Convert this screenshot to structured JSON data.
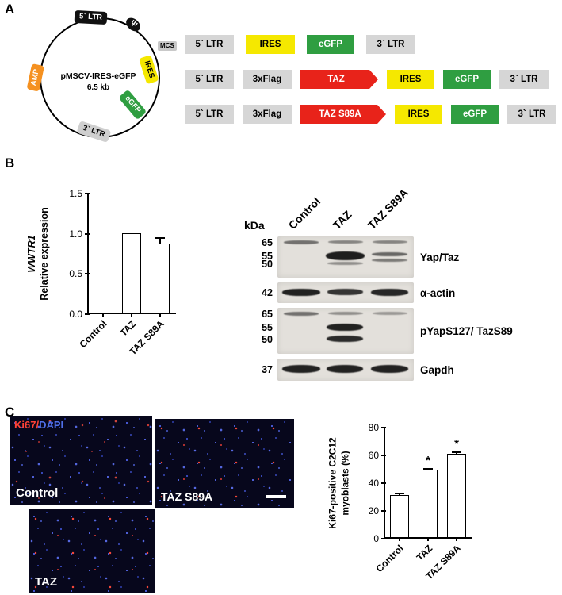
{
  "panel_labels": {
    "a": "A",
    "b": "B",
    "c": "C"
  },
  "plasmid": {
    "name": "pMSCV-IRES-eGFP",
    "size": "6.5 kb",
    "segments": [
      {
        "label": "5` LTR"
      },
      {
        "label": "Ψ"
      },
      {
        "label": "MCS"
      },
      {
        "label": "IRES"
      },
      {
        "label": "eGFP"
      },
      {
        "label": "3` LTR"
      },
      {
        "label": "AMP"
      }
    ]
  },
  "constructs": [
    {
      "boxes": [
        {
          "label": "5` LTR"
        },
        {
          "label": "IRES"
        },
        {
          "label": "eGFP"
        },
        {
          "label": "3` LTR"
        }
      ]
    },
    {
      "boxes": [
        {
          "label": "5` LTR"
        },
        {
          "label": "3xFlag"
        },
        {
          "label": "TAZ"
        },
        {
          "label": "IRES"
        },
        {
          "label": "eGFP"
        },
        {
          "label": "3` LTR"
        }
      ]
    },
    {
      "boxes": [
        {
          "label": "5` LTR"
        },
        {
          "label": "3xFlag"
        },
        {
          "label": "TAZ S89A"
        },
        {
          "label": "IRES"
        },
        {
          "label": "eGFP"
        },
        {
          "label": "3` LTR"
        }
      ]
    }
  ],
  "chart_data": [
    {
      "type": "bar",
      "title": "",
      "ylabel": "WWTR1 Relative expression",
      "ylabel_lines": [
        "WWTR1",
        "Relative expression"
      ],
      "categories": [
        "Control",
        "TAZ",
        "TAZ S89A"
      ],
      "values": [
        0,
        1.0,
        0.87
      ],
      "errors": [
        0,
        0,
        0.08
      ],
      "sig": [
        "",
        "",
        ""
      ],
      "ylim": [
        0,
        1.5
      ],
      "yticks": [
        0,
        0.5,
        1.0,
        1.5
      ],
      "ytick_labels": [
        "0.0",
        "0.5",
        "1.0",
        "1.5"
      ],
      "grid": false,
      "legend": "none"
    },
    {
      "type": "bar",
      "title": "",
      "ylabel": "Ki67-positive C2C12 myoblasts (%)",
      "ylabel_lines": [
        "Ki67-positive C2C12",
        "myoblasts (%)"
      ],
      "categories": [
        "Control",
        "TAZ",
        "TAZ S89A"
      ],
      "values": [
        31,
        49,
        61
      ],
      "errors": [
        1.5,
        1.5,
        1.5
      ],
      "sig": [
        "",
        "*",
        "*"
      ],
      "ylim": [
        0,
        80
      ],
      "yticks": [
        0,
        20,
        40,
        60,
        80
      ],
      "ytick_labels": [
        "0",
        "20",
        "40",
        "60",
        "80"
      ],
      "grid": false,
      "legend": "none"
    }
  ],
  "blot": {
    "kda_label": "kDa",
    "lanes": [
      "Control",
      "TAZ",
      "TAZ S89A"
    ],
    "rows": [
      {
        "markers": [
          "65",
          "55",
          "50"
        ],
        "label": "Yap/Taz"
      },
      {
        "markers": [
          "42"
        ],
        "label": "α-actin"
      },
      {
        "markers": [
          "65",
          "55",
          "50"
        ],
        "label": "pYapS127/ TazS89"
      },
      {
        "markers": [
          "37"
        ],
        "label": "Gapdh"
      }
    ]
  },
  "micrographs": {
    "legend": {
      "ki67": "Ki67",
      "sep": "/",
      "dapi": "DAPI"
    },
    "images": [
      {
        "label": "Control"
      },
      {
        "label": "TAZ S89A"
      },
      {
        "label": "TAZ"
      }
    ]
  },
  "colors": {
    "taz_red": "#e8231a",
    "ires_yellow": "#f5e800",
    "egfp_green": "#2f9e41",
    "amp_orange": "#f59120",
    "ki67_red": "#ff4136",
    "dapi_blue": "#4f6fe8"
  }
}
